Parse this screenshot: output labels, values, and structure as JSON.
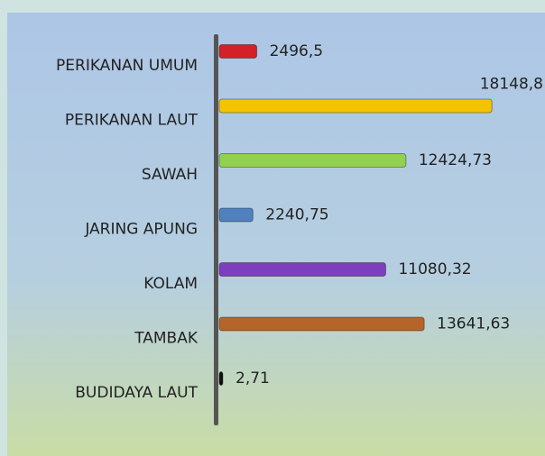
{
  "chart_data": {
    "type": "bar",
    "orientation": "horizontal",
    "categories": [
      "PERIKANAN UMUM",
      "PERIKANAN LAUT",
      "SAWAH",
      "JARING APUNG",
      "KOLAM",
      "TAMBAK",
      "BUDIDAYA LAUT"
    ],
    "values": [
      2496.5,
      18148.8,
      12424.73,
      2240.75,
      11080.32,
      13641.63,
      2.71
    ],
    "value_labels": [
      "2496,5",
      "18148,8",
      "12424,73",
      "2240,75",
      "11080,32",
      "13641,63",
      "2,71"
    ],
    "colors": [
      "#d42028",
      "#f4c300",
      "#92d050",
      "#4f81bd",
      "#7e3fbf",
      "#b5642a",
      "#111111"
    ],
    "xlim": [
      0,
      20000
    ]
  }
}
